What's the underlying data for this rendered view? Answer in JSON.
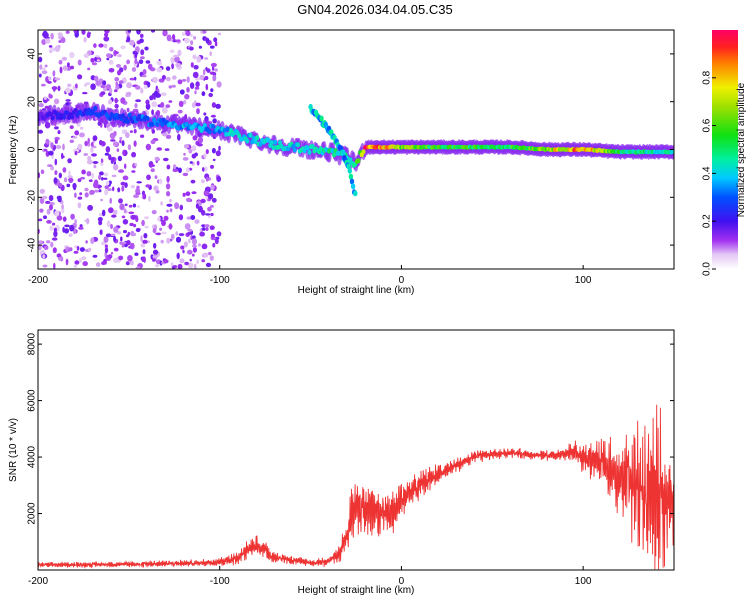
{
  "title": "GN04.2026.034.04.05.C35",
  "chart_data": [
    {
      "type": "heatmap",
      "panel": "spectrogram",
      "xlabel": "Height of straight line (km)",
      "ylabel": "Frequency (Hz)",
      "xlim": [
        -200,
        150
      ],
      "ylim": [
        -50,
        50
      ],
      "xticks": [
        -200,
        -100,
        0,
        100
      ],
      "yticks": [
        -40,
        -20,
        0,
        20,
        40
      ],
      "colorbar": {
        "label": "Normalized spectral amplitude",
        "range": [
          0,
          1
        ],
        "ticks": [
          0.0,
          0.2,
          0.4,
          0.6,
          0.8
        ]
      },
      "ridge": {
        "description": "dominant frequency ridge (Hz) vs height (km)",
        "x": [
          -200,
          -180,
          -170,
          -160,
          -150,
          -140,
          -130,
          -120,
          -110,
          -100,
          -90,
          -80,
          -70,
          -60,
          -50,
          -40,
          -30,
          -25,
          -20,
          -10,
          0,
          20,
          40,
          60,
          80,
          100,
          120,
          140,
          150
        ],
        "y": [
          14,
          15,
          16,
          14,
          13,
          12,
          11,
          10,
          9,
          8,
          6,
          4,
          2,
          1,
          0,
          -1,
          -3,
          -6,
          1,
          1,
          1,
          1,
          1,
          1,
          0,
          0,
          -1,
          -1,
          -1
        ],
        "peak_amplitude": [
          0.2,
          0.25,
          0.3,
          0.3,
          0.3,
          0.35,
          0.35,
          0.4,
          0.4,
          0.4,
          0.45,
          0.45,
          0.45,
          0.45,
          0.45,
          0.5,
          0.5,
          0.55,
          0.95,
          0.95,
          0.7,
          0.6,
          0.6,
          0.6,
          0.75,
          0.95,
          0.55,
          0.5,
          0.5
        ]
      },
      "secondary_branch": {
        "description": "descending branch near -50 to -25 km",
        "x": [
          -50,
          -45,
          -40,
          -35,
          -30,
          -25
        ],
        "y": [
          17,
          13,
          8,
          2,
          -5,
          -20
        ]
      },
      "background_noise_extent_km": [
        -200,
        -100
      ]
    },
    {
      "type": "line",
      "panel": "snr",
      "xlabel": "Height of straight line (km)",
      "ylabel": "SNR (10 * v/v)",
      "xlim": [
        -200,
        150
      ],
      "ylim": [
        0,
        8500
      ],
      "xticks": [
        -200,
        -100,
        0,
        100
      ],
      "yticks": [
        2000,
        4000,
        6000,
        8000
      ],
      "color": "#ee3333",
      "envelope": {
        "description": "approximate mean level and oscillation amplitude of SNR vs height",
        "x": [
          -200,
          -150,
          -110,
          -100,
          -90,
          -85,
          -80,
          -75,
          -70,
          -60,
          -50,
          -40,
          -35,
          -30,
          -28,
          -25,
          -20,
          -15,
          -10,
          -5,
          0,
          10,
          20,
          30,
          40,
          50,
          60,
          70,
          80,
          90,
          95,
          100,
          110,
          120,
          130,
          135,
          140,
          145,
          150
        ],
        "mean": [
          180,
          200,
          250,
          300,
          400,
          700,
          900,
          700,
          450,
          350,
          250,
          300,
          500,
          1200,
          1800,
          2300,
          2200,
          2000,
          2000,
          2000,
          2500,
          3000,
          3400,
          3700,
          4000,
          4100,
          4150,
          4100,
          4050,
          4100,
          4200,
          4000,
          3800,
          3300,
          3000,
          3000,
          3000,
          2600,
          2200
        ],
        "amplitude": [
          100,
          120,
          150,
          200,
          250,
          350,
          450,
          350,
          250,
          200,
          150,
          200,
          300,
          700,
          1000,
          1200,
          1100,
          1000,
          900,
          800,
          800,
          600,
          400,
          300,
          250,
          200,
          200,
          200,
          200,
          250,
          500,
          600,
          900,
          1500,
          2500,
          3000,
          3500,
          2500,
          2000
        ]
      }
    }
  ],
  "colors": {
    "snr_line": "#ee3333",
    "axis": "#000000"
  }
}
